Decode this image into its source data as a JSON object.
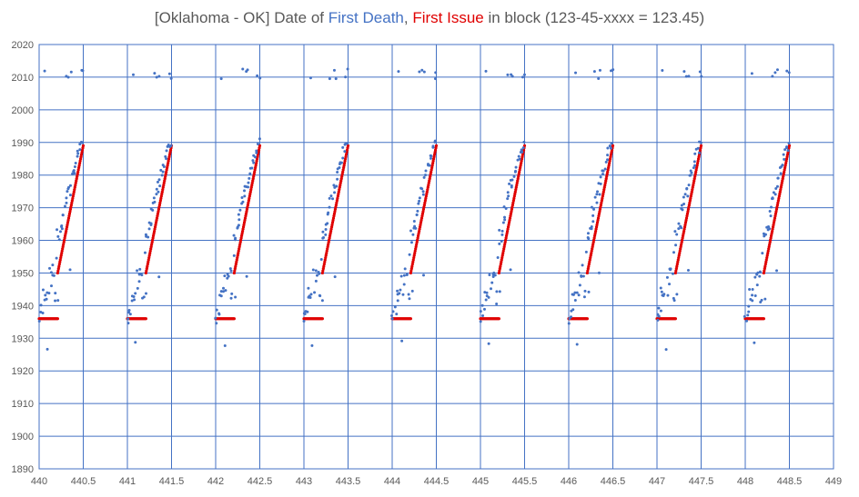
{
  "chart_data": {
    "type": "scatter",
    "title": {
      "prefix": "[Oklahoma - OK] Date of ",
      "series1": "First Death",
      "sep": ", ",
      "series2": "First Issue",
      "suffix": " in block (123-45-xxxx = 123.45)"
    },
    "xlabel": "",
    "ylabel": "",
    "xlim": [
      440,
      449
    ],
    "ylim": [
      1890,
      2020
    ],
    "x_ticks": [
      "440",
      "440.5",
      "441",
      "441.5",
      "442",
      "442.5",
      "443",
      "443.5",
      "444",
      "444.5",
      "445",
      "445.5",
      "446",
      "446.5",
      "447",
      "447.5",
      "448",
      "448.5",
      "449"
    ],
    "y_ticks": [
      "1890",
      "1900",
      "1910",
      "1920",
      "1930",
      "1940",
      "1950",
      "1960",
      "1970",
      "1980",
      "1990",
      "2000",
      "2010",
      "2020"
    ],
    "grid": true,
    "legend": "none",
    "series": [
      {
        "color": "#4472c4",
        "description_points_per_block": "First death dates scattered; trend rising from ~1938 to ~1990 within each block with outliers",
        "block_pattern": [
          [
            0.0,
            1937
          ],
          [
            0.01,
            1936
          ],
          [
            0.02,
            1938
          ],
          [
            0.03,
            1939
          ],
          [
            0.04,
            1938
          ],
          [
            0.05,
            1944
          ],
          [
            0.06,
            1943
          ],
          [
            0.07,
            1944
          ],
          [
            0.08,
            1943
          ],
          [
            0.09,
            1944
          ],
          [
            0.1,
            1928
          ],
          [
            0.11,
            1950
          ],
          [
            0.12,
            1944
          ],
          [
            0.13,
            1947
          ],
          [
            0.14,
            1950
          ],
          [
            0.15,
            1950
          ],
          [
            0.16,
            1951
          ],
          [
            0.17,
            1950
          ],
          [
            0.18,
            1942
          ],
          [
            0.19,
            1943
          ],
          [
            0.2,
            1955
          ],
          [
            0.21,
            1962
          ],
          [
            0.22,
            1960
          ],
          [
            0.23,
            1961
          ],
          [
            0.24,
            1963
          ],
          [
            0.25,
            1964
          ],
          [
            0.26,
            1965
          ],
          [
            0.27,
            1969
          ],
          [
            0.28,
            1968
          ],
          [
            0.29,
            1970
          ],
          [
            0.3,
            1972
          ],
          [
            0.31,
            1973
          ],
          [
            0.32,
            1974
          ],
          [
            0.33,
            1976
          ],
          [
            0.34,
            1977
          ],
          [
            0.35,
            1975
          ],
          [
            0.36,
            1976
          ],
          [
            0.37,
            1979
          ],
          [
            0.38,
            1980
          ],
          [
            0.39,
            1981
          ],
          [
            0.4,
            1982
          ],
          [
            0.41,
            1983
          ],
          [
            0.42,
            1984
          ],
          [
            0.43,
            1985
          ],
          [
            0.44,
            1986
          ],
          [
            0.45,
            1987
          ],
          [
            0.46,
            1988
          ],
          [
            0.47,
            1988
          ],
          [
            0.48,
            1989
          ],
          [
            0.49,
            1990
          ],
          [
            0.07,
            2011
          ],
          [
            0.3,
            2011
          ],
          [
            0.34,
            2011
          ],
          [
            0.36,
            2011
          ],
          [
            0.48,
            2011
          ],
          [
            0.5,
            2011
          ],
          [
            0.22,
            1943
          ],
          [
            0.27,
            1965
          ],
          [
            0.35,
            1950
          ]
        ]
      },
      {
        "color": "#e00000",
        "description_points_per_block": "First issue dates: flat at ~1936 for x 0.00-0.20 of each block, then rising linearly to ~2010",
        "flat_value": 1936,
        "flat_range": [
          0.0,
          0.21
        ],
        "rise_segments": [
          {
            "from": [
              0.21,
              1950
            ],
            "to": [
              0.5,
              1989
            ]
          }
        ]
      }
    ]
  }
}
